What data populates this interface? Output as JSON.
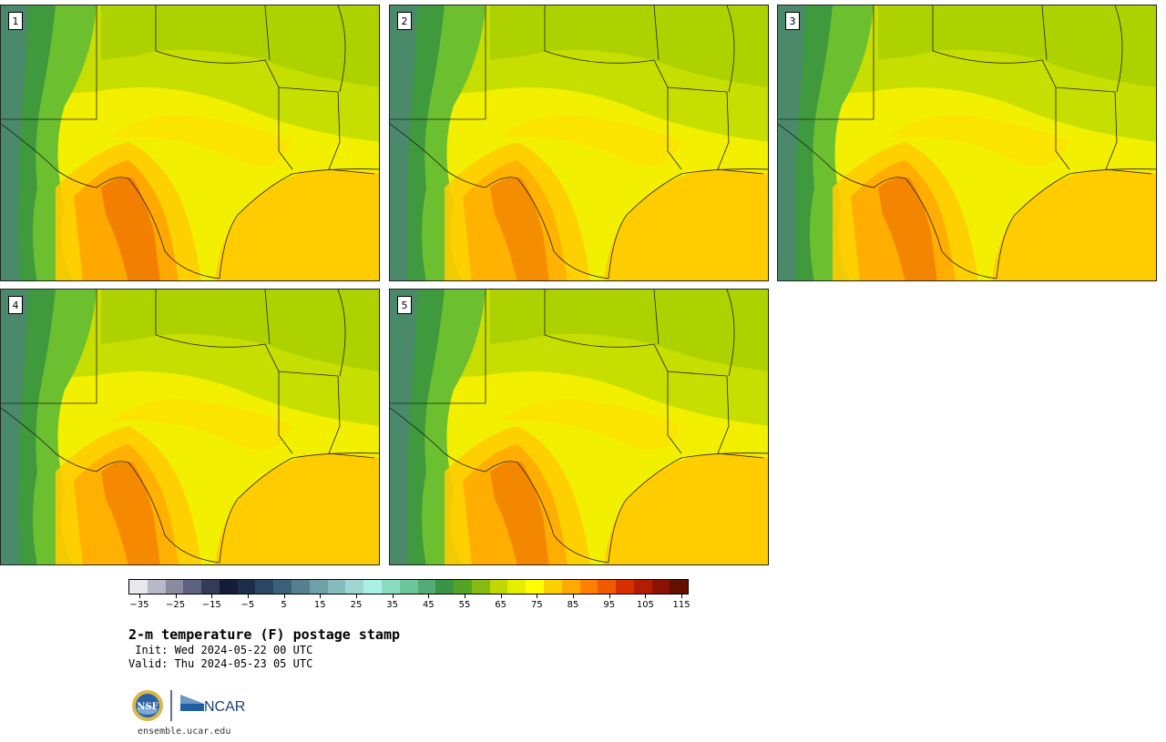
{
  "panels": [
    {
      "label": "1",
      "heat": 1.0
    },
    {
      "label": "2",
      "heat": 0.75
    },
    {
      "label": "3",
      "heat": 0.9
    },
    {
      "label": "4",
      "heat": 0.8
    },
    {
      "label": "5",
      "heat": 0.85
    }
  ],
  "colorbar": {
    "colors": [
      "#e8e8ee",
      "#b8b8c8",
      "#8a8aa0",
      "#5e6080",
      "#353a5c",
      "#151c38",
      "#1d2e4c",
      "#2c4764",
      "#3c6078",
      "#56808e",
      "#6ea0a8",
      "#86bcbe",
      "#9ed6d2",
      "#aaf0e4",
      "#8adcc0",
      "#6cc49a",
      "#52ac74",
      "#3a9448",
      "#52a424",
      "#86bc10",
      "#c0d800",
      "#e6ee00",
      "#ffff00",
      "#ffd000",
      "#ffaa00",
      "#ff8000",
      "#f05a00",
      "#d83000",
      "#b41c00",
      "#8c1200",
      "#641000"
    ],
    "ticks": [
      "−35",
      "−25",
      "−15",
      "−5",
      "5",
      "15",
      "25",
      "35",
      "45",
      "55",
      "65",
      "75",
      "85",
      "95",
      "105",
      "115"
    ]
  },
  "title": "2-m temperature (F) postage stamp",
  "init": " Init: Wed 2024-05-22 00 UTC",
  "valid": "Valid: Thu 2024-05-23 05 UTC",
  "logos": {
    "nsf": "NSF",
    "ncar": "NCAR"
  },
  "site": "ensemble.ucar.edu"
}
